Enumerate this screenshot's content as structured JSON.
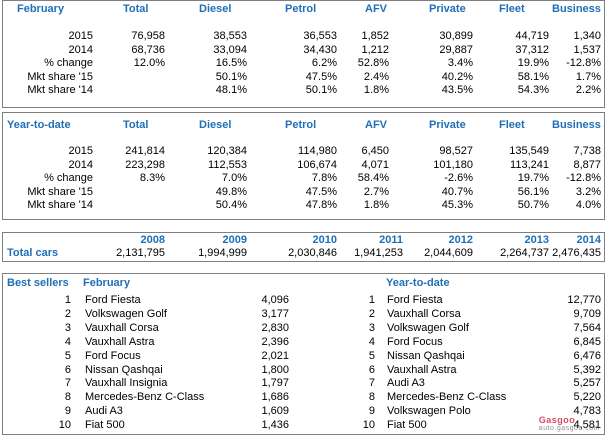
{
  "february": {
    "title": "February",
    "headers": [
      "Total",
      "Diesel",
      "Petrol",
      "AFV",
      "Private",
      "Fleet",
      "Business"
    ],
    "rows": [
      {
        "label": "2015",
        "values": [
          "76,958",
          "38,553",
          "36,553",
          "1,852",
          "30,899",
          "44,719",
          "1,340"
        ]
      },
      {
        "label": "2014",
        "values": [
          "68,736",
          "33,094",
          "34,430",
          "1,212",
          "29,887",
          "37,312",
          "1,537"
        ]
      },
      {
        "label": "% change",
        "values": [
          "12.0%",
          "16.5%",
          "6.2%",
          "52.8%",
          "3.4%",
          "19.9%",
          "-12.8%"
        ]
      },
      {
        "label": "Mkt share '15",
        "values": [
          "",
          "50.1%",
          "47.5%",
          "2.4%",
          "40.2%",
          "58.1%",
          "1.7%"
        ]
      },
      {
        "label": "Mkt share '14",
        "values": [
          "",
          "48.1%",
          "50.1%",
          "1.8%",
          "43.5%",
          "54.3%",
          "2.2%"
        ]
      }
    ]
  },
  "ytd": {
    "title": "Year-to-date",
    "headers": [
      "Total",
      "Diesel",
      "Petrol",
      "AFV",
      "Private",
      "Fleet",
      "Business"
    ],
    "rows": [
      {
        "label": "2015",
        "values": [
          "241,814",
          "120,384",
          "114,980",
          "6,450",
          "98,527",
          "135,549",
          "7,738"
        ]
      },
      {
        "label": "2014",
        "values": [
          "223,298",
          "112,553",
          "106,674",
          "4,071",
          "101,180",
          "113,241",
          "8,877"
        ]
      },
      {
        "label": "% change",
        "values": [
          "8.3%",
          "7.0%",
          "7.8%",
          "58.4%",
          "-2.6%",
          "19.7%",
          "-12.8%"
        ]
      },
      {
        "label": "Mkt share '15",
        "values": [
          "",
          "49.8%",
          "47.5%",
          "2.7%",
          "40.7%",
          "56.1%",
          "3.2%"
        ]
      },
      {
        "label": "Mkt share '14",
        "values": [
          "",
          "50.4%",
          "47.8%",
          "1.8%",
          "45.3%",
          "50.7%",
          "4.0%"
        ]
      }
    ]
  },
  "annual": {
    "label": "Total cars",
    "years": [
      "2008",
      "2009",
      "2010",
      "2011",
      "2012",
      "2013",
      "2014"
    ],
    "values": [
      "2,131,795",
      "1,994,999",
      "2,030,846",
      "1,941,253",
      "2,044,609",
      "2,264,737",
      "2,476,435"
    ]
  },
  "best_sellers": {
    "title": "Best sellers",
    "feb_title": "February",
    "ytd_title": "Year-to-date",
    "february": [
      {
        "rank": "1",
        "model": "Ford Fiesta",
        "units": "4,096"
      },
      {
        "rank": "2",
        "model": "Volkswagen Golf",
        "units": "3,177"
      },
      {
        "rank": "3",
        "model": "Vauxhall Corsa",
        "units": "2,830"
      },
      {
        "rank": "4",
        "model": "Vauxhall Astra",
        "units": "2,396"
      },
      {
        "rank": "5",
        "model": "Ford Focus",
        "units": "2,021"
      },
      {
        "rank": "6",
        "model": "Nissan Qashqai",
        "units": "1,800"
      },
      {
        "rank": "7",
        "model": "Vauxhall Insignia",
        "units": "1,797"
      },
      {
        "rank": "8",
        "model": "Mercedes-Benz C-Class",
        "units": "1,686"
      },
      {
        "rank": "9",
        "model": "Audi A3",
        "units": "1,609"
      },
      {
        "rank": "10",
        "model": "Fiat 500",
        "units": "1,436"
      }
    ],
    "ytd": [
      {
        "rank": "1",
        "model": "Ford Fiesta",
        "units": "12,770"
      },
      {
        "rank": "2",
        "model": "Vauxhall Corsa",
        "units": "9,709"
      },
      {
        "rank": "3",
        "model": "Volkswagen Golf",
        "units": "7,564"
      },
      {
        "rank": "4",
        "model": "Ford Focus",
        "units": "6,845"
      },
      {
        "rank": "5",
        "model": "Nissan Qashqai",
        "units": "6,476"
      },
      {
        "rank": "6",
        "model": "Vauxhall Astra",
        "units": "5,392"
      },
      {
        "rank": "7",
        "model": "Audi A3",
        "units": "5,257"
      },
      {
        "rank": "8",
        "model": "Mercedes-Benz C-Class",
        "units": "5,220"
      },
      {
        "rank": "9",
        "model": "Volkswagen Polo",
        "units": "4,783"
      },
      {
        "rank": "10",
        "model": "Fiat 500",
        "units": "4,581"
      }
    ]
  },
  "watermark": {
    "brand": "Gasgoo",
    "site": "auto.gasgoo.com"
  }
}
